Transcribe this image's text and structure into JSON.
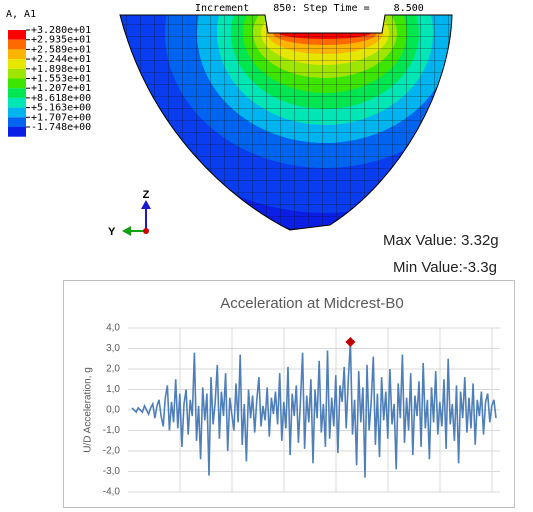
{
  "contour": {
    "header": "Increment    850: Step Time =    8.500",
    "legend": {
      "title": "A, A1",
      "labels": [
        "+3.280e+01",
        "+2.935e+01",
        "+2.589e+01",
        "+2.244e+01",
        "+1.898e+01",
        "+1.553e+01",
        "+1.207e+01",
        "+8.618e+00",
        "+5.163e+00",
        "+1.707e+00",
        "-1.748e+00"
      ],
      "colors": [
        "#ff0000",
        "#ff6a00",
        "#ffb400",
        "#e6e600",
        "#9ee600",
        "#3ce600",
        "#00e650",
        "#00e6b4",
        "#00b4f0",
        "#0064f0",
        "#0a1ee6"
      ]
    },
    "triad": {
      "z": "Z",
      "y": "Y"
    },
    "max_value": "Max Value: 3.32g",
    "min_value": "Min Value:-3.3g"
  },
  "chart_data": {
    "type": "line",
    "title": "Acceleration at Midcrest-B0",
    "y_label": "U/D Acceleration, g",
    "ylim": [
      -4,
      4
    ],
    "yticks": [
      {
        "value": -4,
        "label": "-4,0"
      },
      {
        "value": -3,
        "label": "-3,0"
      },
      {
        "value": -2,
        "label": "-2,0"
      },
      {
        "value": -1,
        "label": "-1,0"
      },
      {
        "value": 0,
        "label": "0,0"
      },
      {
        "value": 1,
        "label": "1,0"
      },
      {
        "value": 2,
        "label": "2,0"
      },
      {
        "value": 3,
        "label": "3,0"
      },
      {
        "value": 4,
        "label": "4,0"
      }
    ],
    "grid": true,
    "marker_color": "#c00000",
    "series": [
      {
        "color": "#4f7fb8",
        "values": [
          0.1,
          0.0,
          -0.1,
          0.1,
          0.0,
          -0.1,
          0.2,
          0.0,
          -0.2,
          0.1,
          0.3,
          -0.4,
          0.2,
          0.5,
          -0.3,
          -0.8,
          0.6,
          1.2,
          -1.0,
          0.4,
          -0.6,
          1.5,
          -0.9,
          0.8,
          -1.8,
          0.3,
          1.0,
          -1.2,
          0.5,
          -0.3,
          2.8,
          -1.5,
          0.2,
          -2.4,
          1.1,
          -0.5,
          0.8,
          -3.2,
          1.6,
          -0.7,
          0.4,
          2.2,
          -1.4,
          0.9,
          -0.3,
          1.8,
          -2.0,
          0.6,
          -0.2,
          -1.0,
          1.3,
          -0.6,
          2.7,
          -1.7,
          0.3,
          -2.5,
          1.0,
          -0.4,
          0.7,
          -1.1,
          0.5,
          1.6,
          -0.8,
          0.2,
          -0.5,
          1.1,
          -1.3,
          0.6,
          -0.2,
          0.9,
          -0.7,
          1.8,
          -1.5,
          0.4,
          -0.9,
          2.1,
          -2.2,
          0.8,
          -0.3,
          1.2,
          -1.6,
          0.5,
          2.8,
          -1.9,
          0.7,
          -0.6,
          1.5,
          -2.6,
          1.0,
          -0.4,
          2.4,
          -1.1,
          0.3,
          -1.8,
          2.9,
          -1.4,
          0.6,
          -0.8,
          1.7,
          -2.1,
          1.2,
          0.4,
          2.1,
          -0.9,
          1.5,
          3.32,
          -1.2,
          0.5,
          -2.7,
          1.9,
          -0.6,
          1.1,
          -3.3,
          2.2,
          -1.0,
          0.4,
          2.6,
          -1.7,
          0.8,
          -2.3,
          1.6,
          -0.5,
          0.9,
          -1.4,
          2.0,
          -0.7,
          0.3,
          -2.9,
          1.3,
          -0.4,
          2.7,
          -1.6,
          0.6,
          -1.0,
          1.8,
          -2.2,
          0.7,
          -0.3,
          1.4,
          -1.8,
          2.3,
          -0.9,
          0.5,
          -2.4,
          1.1,
          -0.6,
          1.9,
          -1.2,
          0.4,
          -0.8,
          1.5,
          -1.9,
          2.5,
          -0.7,
          0.3,
          -1.5,
          1.2,
          -2.6,
          0.9,
          -0.4,
          1.6,
          -1.1,
          0.6,
          -0.9,
          1.3,
          -1.7,
          0.5,
          -0.3,
          0.9,
          -1.2,
          0.4,
          0.8,
          -0.6,
          0.2,
          0.5,
          -0.4
        ]
      }
    ]
  }
}
